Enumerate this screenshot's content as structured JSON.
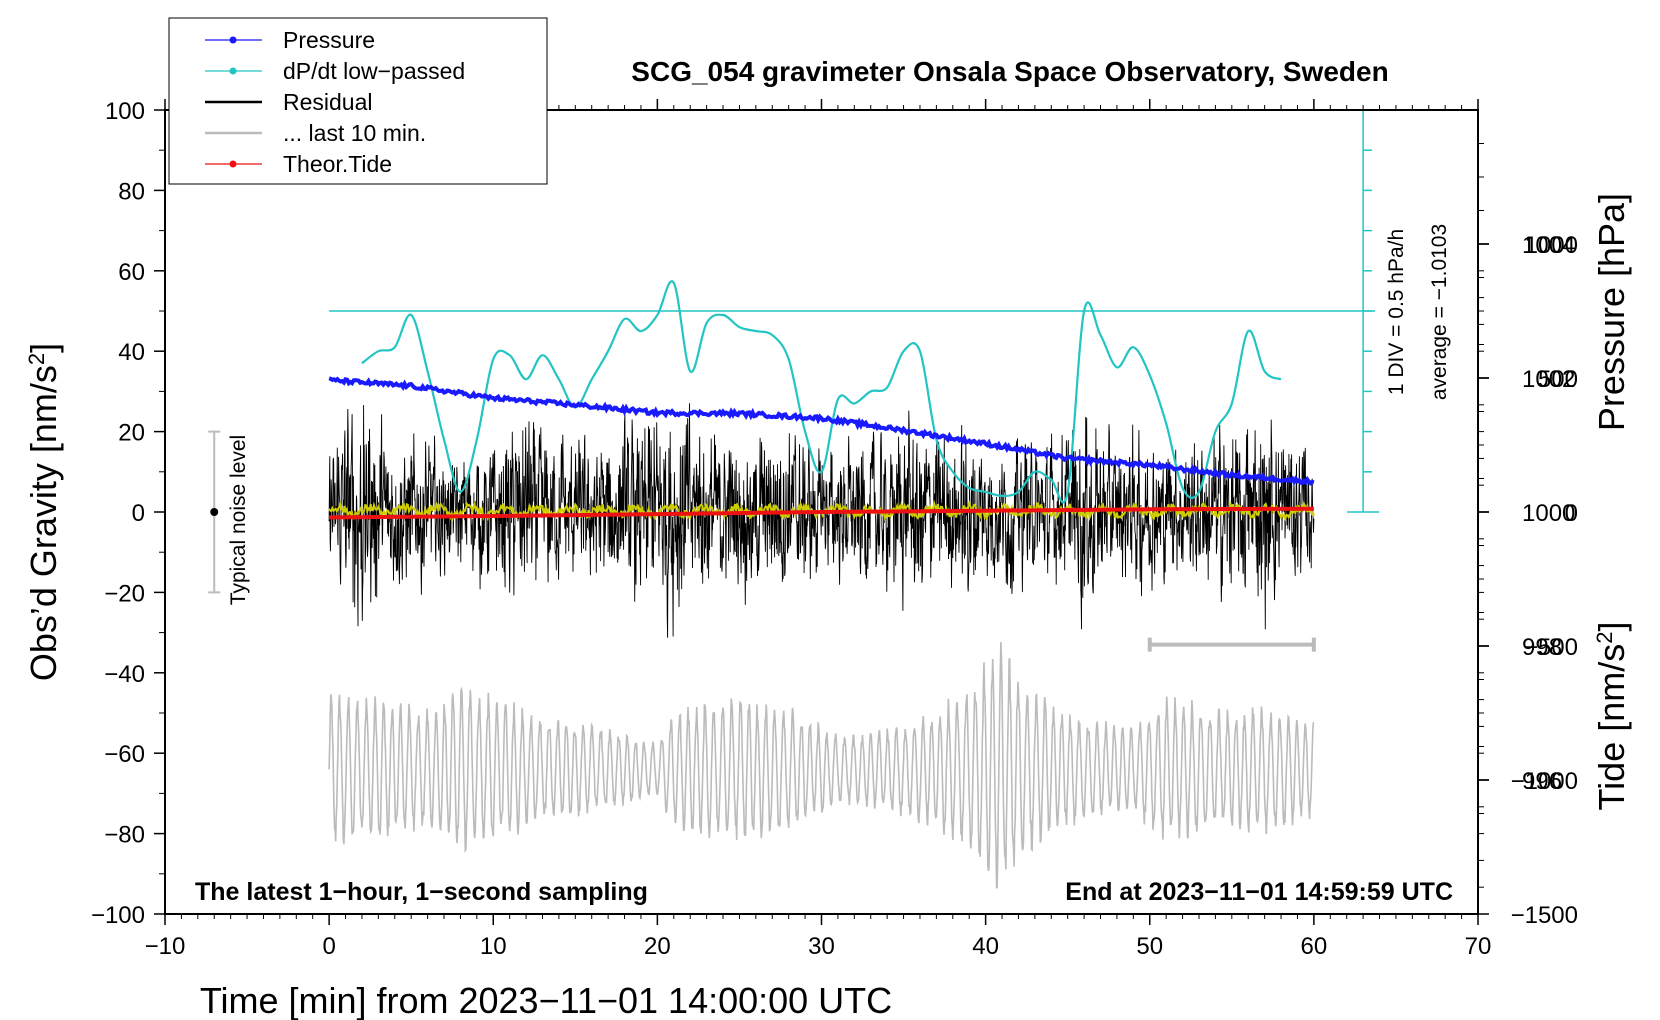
{
  "chart_data": {
    "type": "line",
    "title": "SCG_054 gravimeter Onsala Space Observatory, Sweden",
    "xlabel": "Time [min] from 2023−11−01 14:00:00 UTC",
    "xlim": [
      -10,
      70
    ],
    "x_ticks": [
      -10,
      0,
      10,
      20,
      30,
      40,
      50,
      60,
      70
    ],
    "x_tick_labels": [
      "−10",
      "0",
      "10",
      "20",
      "30",
      "40",
      "50",
      "60",
      "70"
    ],
    "left_axis": {
      "label": "Obs’d Gravity [nm/s²]",
      "label_main": "Obs’d Gravity [nm/s",
      "label_sup": "2",
      "label_end": "]",
      "ylim": [
        -100,
        100
      ],
      "ticks": [
        -100,
        -80,
        -60,
        -40,
        -20,
        0,
        20,
        40,
        60,
        80,
        100
      ],
      "tick_labels": [
        "−100",
        "−80",
        "−60",
        "−40",
        "−20",
        "0",
        "20",
        "40",
        "60",
        "80",
        "100"
      ]
    },
    "pressure_axis": {
      "label": "Pressure [hPa]",
      "range": [
        994,
        1006
      ],
      "ticks": [
        996,
        998,
        1000,
        1002,
        1004
      ],
      "tick_labels": [
        "996",
        "998",
        "1000",
        "1002",
        "1004"
      ]
    },
    "tide_axis": {
      "label": "Tide [nm/s²]",
      "label_main": "Tide [nm/s",
      "label_sup": "2",
      "label_end": "]",
      "range": [
        -1500,
        1500
      ],
      "ticks": [
        -1500,
        -1000,
        -500,
        0,
        500,
        1000
      ],
      "tick_labels": [
        "−1500",
        "−1000",
        "−500",
        "0",
        "500",
        "1000"
      ]
    },
    "dpdt_scale": {
      "label_div": "1 DIV = 0.5 hPa/h",
      "label_avg": "average = −1.0103",
      "reference_gravity": 50,
      "axis_x": 63.0,
      "axis_bottom_gravity": 0,
      "axis_top_gravity": 100,
      "divisions": 10
    },
    "noise_bar": {
      "label": "Typical noise level",
      "x": -7.0,
      "center": 0,
      "low": -20,
      "high": 20
    },
    "last10_bar": {
      "x_start": 50,
      "x_end": 60,
      "gravity": -33
    },
    "annotation_left": "The latest 1−hour, 1−second sampling",
    "annotation_right": "End at 2023−11−01 14:59:59 UTC",
    "legend": [
      {
        "label": "Pressure",
        "color": "#1a1aff",
        "marker": true
      },
      {
        "label": "dP/dt low−passed",
        "color": "#22c4c4",
        "marker": true
      },
      {
        "label": "Residual",
        "color": "#000000",
        "marker": false
      },
      {
        "label": "... last 10 min.",
        "color": "#bbbbbb",
        "marker": false
      },
      {
        "label": "Theor.Tide",
        "color": "#ee1111",
        "marker": true
      }
    ],
    "series": [
      {
        "name": "Pressure",
        "axis": "pressure_hPa",
        "color": "#1a1aff",
        "x": [
          0,
          5,
          10,
          15,
          20,
          25,
          30,
          35,
          40,
          45,
          50,
          55,
          60
        ],
        "values": [
          1001.97,
          1001.88,
          1001.7,
          1001.6,
          1001.48,
          1001.47,
          1001.4,
          1001.22,
          1001.02,
          1000.8,
          1000.7,
          1000.55,
          1000.45
        ]
      },
      {
        "name": "dP/dt low-passed",
        "axis": "gravity_scale",
        "color": "#22c4c4",
        "x": [
          2,
          3,
          4,
          5,
          6,
          7,
          8,
          9,
          10,
          11,
          12,
          13,
          14,
          15,
          16,
          17,
          18,
          19,
          20,
          21,
          22,
          23,
          24,
          25,
          26,
          27,
          28,
          29,
          30,
          31,
          32,
          33,
          34,
          35,
          36,
          37,
          38,
          39,
          40,
          41,
          42,
          43,
          44,
          45,
          46,
          47,
          48,
          49,
          50,
          51,
          52,
          53,
          54,
          55,
          56,
          57,
          58
        ],
        "values": [
          37,
          40,
          41,
          49,
          35,
          18,
          5,
          18,
          38,
          39,
          33,
          39,
          33,
          26,
          33,
          40,
          48,
          45,
          49,
          57,
          35,
          47,
          49,
          46,
          45,
          44,
          38,
          20,
          10,
          28,
          27,
          30,
          31,
          40,
          40,
          18,
          10,
          6,
          5,
          4,
          5,
          10,
          8,
          5,
          50,
          44,
          36,
          41,
          34,
          22,
          6,
          5,
          20,
          27,
          45,
          35,
          33
        ]
      },
      {
        "name": "Residual",
        "axis": "gravity",
        "color": "#000000",
        "x_range": [
          0,
          60
        ],
        "envelope": [
          [
            0,
            22
          ],
          [
            1,
            38
          ],
          [
            2,
            43
          ],
          [
            3,
            32
          ],
          [
            4,
            28
          ],
          [
            5,
            28
          ],
          [
            6,
            25
          ],
          [
            7,
            21
          ],
          [
            8,
            20
          ],
          [
            9,
            22
          ],
          [
            10,
            28
          ],
          [
            11,
            30
          ],
          [
            12,
            36
          ],
          [
            13,
            28
          ],
          [
            14,
            27
          ],
          [
            15,
            24
          ],
          [
            16,
            26
          ],
          [
            17,
            30
          ],
          [
            18,
            30
          ],
          [
            19,
            33
          ],
          [
            20,
            36
          ],
          [
            21,
            40
          ],
          [
            22,
            36
          ],
          [
            23,
            31
          ],
          [
            24,
            27
          ],
          [
            25,
            27
          ],
          [
            26,
            28
          ],
          [
            27,
            30
          ],
          [
            28,
            34
          ],
          [
            29,
            26
          ],
          [
            30,
            22
          ],
          [
            31,
            24
          ],
          [
            32,
            26
          ],
          [
            33,
            27
          ],
          [
            34,
            26
          ],
          [
            35,
            30
          ],
          [
            36,
            36
          ],
          [
            37,
            30
          ],
          [
            38,
            26
          ],
          [
            39,
            35
          ],
          [
            40,
            26
          ],
          [
            41,
            24
          ],
          [
            42,
            26
          ],
          [
            43,
            25
          ],
          [
            44,
            24
          ],
          [
            45,
            27
          ],
          [
            46,
            40
          ],
          [
            47,
            30
          ],
          [
            48,
            24
          ],
          [
            49,
            27
          ],
          [
            50,
            25
          ],
          [
            51,
            26
          ],
          [
            52,
            22
          ],
          [
            53,
            26
          ],
          [
            54,
            29
          ],
          [
            55,
            30
          ],
          [
            56,
            33
          ],
          [
            57,
            36
          ],
          [
            58,
            30
          ],
          [
            59,
            24
          ],
          [
            60,
            20
          ]
        ]
      },
      {
        "name": "Residual smoothed",
        "axis": "gravity",
        "color": "#cccc00",
        "x_range": [
          0,
          60
        ],
        "amplitude": 1.5
      },
      {
        "name": "... last 10 min.",
        "axis": "gravity",
        "color": "#bbbbbb",
        "x_range": [
          0,
          60
        ],
        "center": -64,
        "period_min": 0.53,
        "envelope": [
          [
            0,
            18
          ],
          [
            3,
            17
          ],
          [
            6,
            14
          ],
          [
            8,
            20
          ],
          [
            10,
            17
          ],
          [
            13,
            13
          ],
          [
            17,
            10
          ],
          [
            20,
            6
          ],
          [
            21,
            14
          ],
          [
            23,
            16
          ],
          [
            25,
            18
          ],
          [
            27,
            16
          ],
          [
            29,
            13
          ],
          [
            31,
            8
          ],
          [
            34,
            10
          ],
          [
            37,
            14
          ],
          [
            39,
            20
          ],
          [
            41,
            30
          ],
          [
            43,
            18
          ],
          [
            46,
            12
          ],
          [
            49,
            10
          ],
          [
            51,
            18
          ],
          [
            54,
            14
          ],
          [
            57,
            15
          ],
          [
            60,
            12
          ]
        ]
      },
      {
        "name": "Theor.Tide",
        "axis": "tide",
        "color": "#ee1111",
        "x": [
          0,
          10,
          20,
          30,
          40,
          50,
          60
        ],
        "values": [
          -20,
          -15,
          -8,
          0,
          5,
          10,
          12
        ]
      }
    ]
  }
}
